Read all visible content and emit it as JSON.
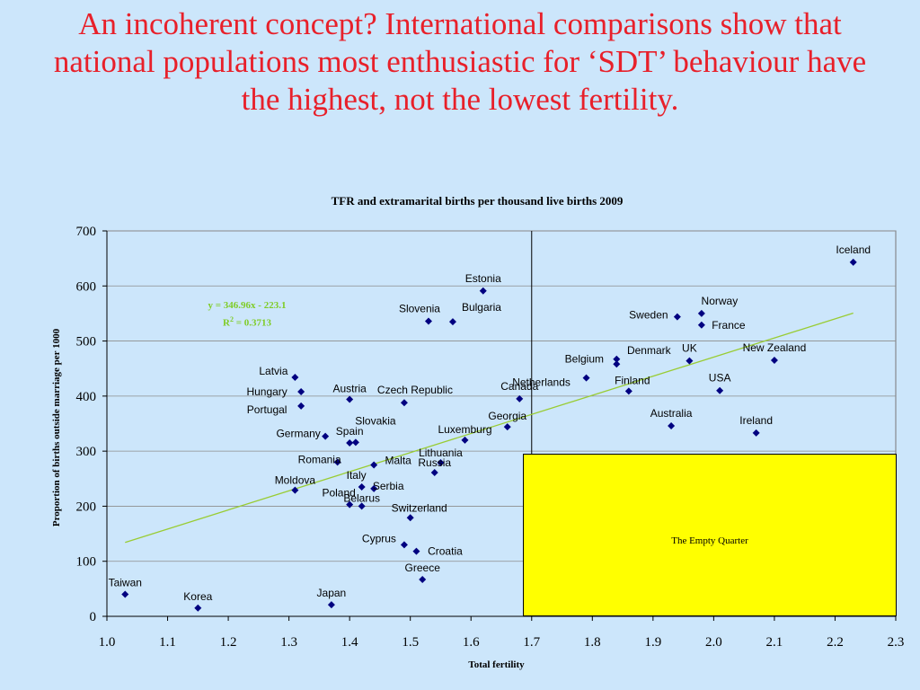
{
  "slide": {
    "title": "An incoherent concept? International comparisons show that national populations most enthusiastic for ‘SDT’ behaviour have the highest, not the lowest fertility."
  },
  "annotation": {
    "equation": "y = 346.96x - 223.1",
    "r2_prefix": "R",
    "r2_sup": "2",
    "r2_value": " = 0.3713",
    "empty_quarter": "The Empty Quarter"
  },
  "colors": {
    "background": "#cce6fb",
    "title": "#e8202a",
    "marker": "#000080",
    "trendline": "#99cc33",
    "box": "#ffff00"
  },
  "chart_data": {
    "type": "scatter",
    "title": "TFR and extramarital births per thousand live births 2009",
    "xlabel": "Total fertility",
    "ylabel": "Proportion of births outside marriage per 1000",
    "xlim": [
      1.0,
      2.3
    ],
    "ylim": [
      0,
      700
    ],
    "xticks": [
      "1.0",
      "1.1",
      "1.2",
      "1.3",
      "1.4",
      "1.5",
      "1.6",
      "1.7",
      "1.8",
      "1.9",
      "2.0",
      "2.1",
      "2.2",
      "2.3"
    ],
    "yticks": [
      "0",
      "100",
      "200",
      "300",
      "400",
      "500",
      "600",
      "700"
    ],
    "grid": true,
    "vline_x": 1.7,
    "trendline": {
      "slope": 346.96,
      "intercept": -223.1,
      "x0": 1.03,
      "x1": 2.23
    },
    "points": [
      {
        "label": "Iceland",
        "x": 2.23,
        "y": 643
      },
      {
        "label": "Estonia",
        "x": 1.62,
        "y": 591
      },
      {
        "label": "Slovenia",
        "x": 1.53,
        "y": 536
      },
      {
        "label": "Bulgaria",
        "x": 1.57,
        "y": 535
      },
      {
        "label": "Sweden",
        "x": 1.94,
        "y": 544
      },
      {
        "label": "Norway",
        "x": 1.98,
        "y": 550
      },
      {
        "label": "France",
        "x": 1.98,
        "y": 529
      },
      {
        "label": "Denmark",
        "x": 1.84,
        "y": 467
      },
      {
        "label": "UK",
        "x": 1.96,
        "y": 464
      },
      {
        "label": "New Zealand",
        "x": 2.1,
        "y": 465
      },
      {
        "label": "Belgium",
        "x": 1.84,
        "y": 458
      },
      {
        "label": "Netherlands",
        "x": 1.79,
        "y": 433
      },
      {
        "label": "Finland",
        "x": 1.86,
        "y": 409
      },
      {
        "label": "USA",
        "x": 2.01,
        "y": 410
      },
      {
        "label": "Latvia",
        "x": 1.31,
        "y": 434
      },
      {
        "label": "Hungary",
        "x": 1.32,
        "y": 408
      },
      {
        "label": "Austria",
        "x": 1.4,
        "y": 394
      },
      {
        "label": "Czech Republic",
        "x": 1.49,
        "y": 388
      },
      {
        "label": "Canada",
        "x": 1.68,
        "y": 395
      },
      {
        "label": "Portugal",
        "x": 1.32,
        "y": 382
      },
      {
        "label": "Georgia",
        "x": 1.66,
        "y": 344
      },
      {
        "label": "Australia",
        "x": 1.93,
        "y": 346
      },
      {
        "label": "Ireland",
        "x": 2.07,
        "y": 333
      },
      {
        "label": "Germany",
        "x": 1.36,
        "y": 327
      },
      {
        "label": "Slovakia",
        "x": 1.41,
        "y": 316
      },
      {
        "label": "Spain",
        "x": 1.4,
        "y": 315
      },
      {
        "label": "Luxemburg",
        "x": 1.59,
        "y": 320
      },
      {
        "label": "Romania",
        "x": 1.38,
        "y": 280
      },
      {
        "label": "Malta",
        "x": 1.44,
        "y": 275
      },
      {
        "label": "Lithuania",
        "x": 1.55,
        "y": 279
      },
      {
        "label": "Russia",
        "x": 1.54,
        "y": 261
      },
      {
        "label": "Italy",
        "x": 1.42,
        "y": 235
      },
      {
        "label": "Serbia",
        "x": 1.44,
        "y": 232
      },
      {
        "label": "Moldova",
        "x": 1.31,
        "y": 229
      },
      {
        "label": "Poland",
        "x": 1.4,
        "y": 203
      },
      {
        "label": "Belarus",
        "x": 1.42,
        "y": 200
      },
      {
        "label": "Switzerland",
        "x": 1.5,
        "y": 179
      },
      {
        "label": "Cyprus",
        "x": 1.49,
        "y": 130
      },
      {
        "label": "Croatia",
        "x": 1.51,
        "y": 118
      },
      {
        "label": "Greece",
        "x": 1.52,
        "y": 67
      },
      {
        "label": "Taiwan",
        "x": 1.03,
        "y": 40
      },
      {
        "label": "Korea",
        "x": 1.15,
        "y": 15
      },
      {
        "label": "Japan",
        "x": 1.37,
        "y": 21
      }
    ]
  }
}
